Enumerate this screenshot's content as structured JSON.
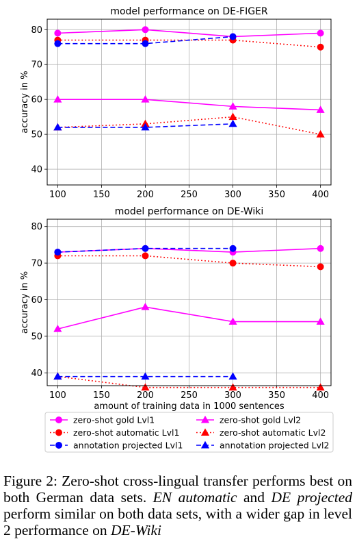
{
  "colors": {
    "gold": "#ff00ff",
    "automatic": "#ff0000",
    "projected": "#0000ff",
    "grid": "#b0b0b0"
  },
  "chart_data": [
    {
      "type": "line",
      "title": "model performance on DE-FIGER",
      "xlabel": "",
      "ylabel": "accuracy in %",
      "xlim": [
        88,
        412
      ],
      "ylim": [
        35.5,
        83
      ],
      "xticks": [
        100,
        150,
        200,
        250,
        300,
        350,
        400
      ],
      "yticks": [
        40,
        50,
        60,
        70,
        80
      ],
      "grid": true,
      "series": [
        {
          "name": "zero-shot gold Lvl1",
          "style": "solid",
          "marker": "circle",
          "color": "#ff00ff",
          "x": [
            100,
            200,
            300,
            400
          ],
          "y": [
            79,
            80,
            78,
            79
          ]
        },
        {
          "name": "zero-shot gold Lvl2",
          "style": "solid",
          "marker": "triangle",
          "color": "#ff00ff",
          "x": [
            100,
            200,
            300,
            400
          ],
          "y": [
            60,
            60,
            58,
            57
          ]
        },
        {
          "name": "zero-shot automatic Lvl1",
          "style": "dotted",
          "marker": "circle",
          "color": "#ff0000",
          "x": [
            100,
            200,
            300,
            400
          ],
          "y": [
            77,
            77,
            77,
            75
          ]
        },
        {
          "name": "zero-shot automatic Lvl2",
          "style": "dotted",
          "marker": "triangle",
          "color": "#ff0000",
          "x": [
            100,
            200,
            300,
            400
          ],
          "y": [
            52,
            53,
            55,
            50
          ]
        },
        {
          "name": "annotation projected Lvl1",
          "style": "dashed",
          "marker": "circle",
          "color": "#0000ff",
          "x": [
            100,
            200,
            300
          ],
          "y": [
            76,
            76,
            78
          ]
        },
        {
          "name": "annotation projected Lvl2",
          "style": "dashed",
          "marker": "triangle",
          "color": "#0000ff",
          "x": [
            100,
            200,
            300
          ],
          "y": [
            52,
            52,
            53
          ]
        }
      ]
    },
    {
      "type": "line",
      "title": "model performance on DE-Wiki",
      "xlabel": "amount of training data in 1000 sentences",
      "ylabel": "accuracy in %",
      "xlim": [
        88,
        412
      ],
      "ylim": [
        36.5,
        82
      ],
      "xticks": [
        100,
        150,
        200,
        250,
        300,
        350,
        400
      ],
      "yticks": [
        40,
        50,
        60,
        70,
        80
      ],
      "grid": true,
      "series": [
        {
          "name": "zero-shot gold Lvl1",
          "style": "solid",
          "marker": "circle",
          "color": "#ff00ff",
          "x": [
            100,
            200,
            300,
            400
          ],
          "y": [
            73,
            74,
            73,
            74
          ]
        },
        {
          "name": "zero-shot gold Lvl2",
          "style": "solid",
          "marker": "triangle",
          "color": "#ff00ff",
          "x": [
            100,
            200,
            300,
            400
          ],
          "y": [
            52,
            58,
            54,
            54
          ]
        },
        {
          "name": "zero-shot automatic Lvl1",
          "style": "dotted",
          "marker": "circle",
          "color": "#ff0000",
          "x": [
            100,
            200,
            300,
            400
          ],
          "y": [
            72,
            72,
            70,
            69
          ]
        },
        {
          "name": "zero-shot automatic Lvl2",
          "style": "dotted",
          "marker": "triangle",
          "color": "#ff0000",
          "x": [
            100,
            200,
            300,
            400
          ],
          "y": [
            39,
            36,
            36,
            36
          ]
        },
        {
          "name": "annotation projected Lvl1",
          "style": "dashed",
          "marker": "circle",
          "color": "#0000ff",
          "x": [
            100,
            200,
            300
          ],
          "y": [
            73,
            74,
            74
          ]
        },
        {
          "name": "annotation projected Lvl2",
          "style": "dashed",
          "marker": "triangle",
          "color": "#0000ff",
          "x": [
            100,
            200,
            300
          ],
          "y": [
            39,
            39,
            39
          ]
        }
      ]
    }
  ],
  "legend": {
    "placement": "bottom",
    "columns": 2,
    "entries": [
      "zero-shot gold Lvl1",
      "zero-shot gold Lvl2",
      "zero-shot automatic Lvl1",
      "zero-shot automatic Lvl2",
      "annotation projected Lvl1",
      "annotation projected Lvl2"
    ]
  },
  "caption": {
    "label": "Figure 2:",
    "text_1": " Zero-shot cross-lingual transfer performs best on both German data sets. ",
    "em_1": "EN automatic",
    "text_2": " and ",
    "em_2": "DE projected",
    "text_3": " perform similar on both data sets, with a wider gap in level 2 performance on ",
    "em_3": "DE-Wiki"
  }
}
